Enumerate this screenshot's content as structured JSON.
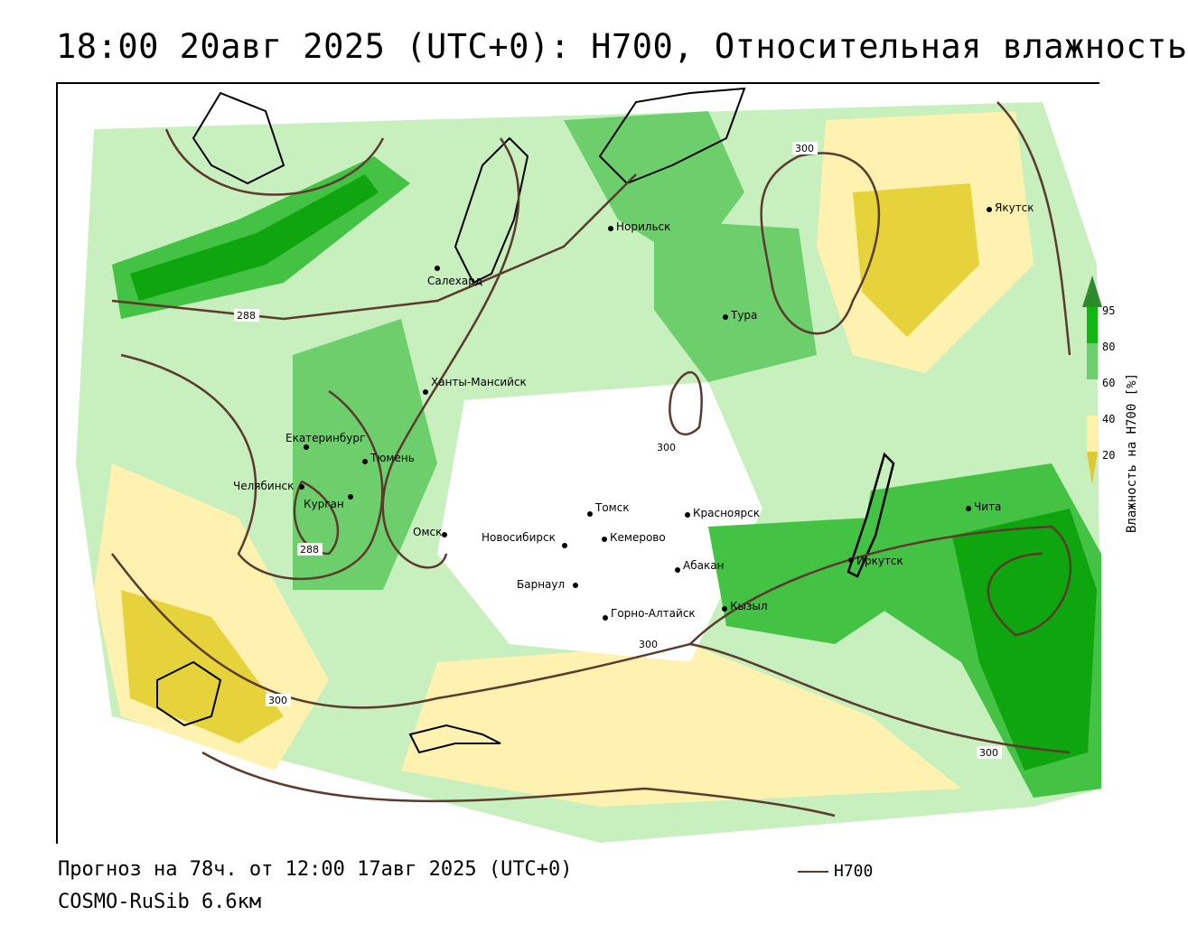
{
  "title": "18:00 20авг 2025 (UTC+0): H700, Относительная влажность",
  "footer": {
    "forecast": "Прогноз на 78ч. от 12:00 17авг 2025 (UTC+0)",
    "model": "COSMO-RuSib 6.6км",
    "legend_label": "H700"
  },
  "colorbar": {
    "title": "Влажность на H700 [%]",
    "ticks": [
      "95",
      "80",
      "60",
      "40",
      "20"
    ],
    "colors": [
      "#2d8a2d",
      "#11b611",
      "#6ccf6c",
      "#c8f0c0",
      "#ffffff",
      "#fff2a8",
      "#e0c832"
    ]
  },
  "cities": [
    {
      "name": "Норильск"
    },
    {
      "name": "Салехард"
    },
    {
      "name": "Тура"
    },
    {
      "name": "Якутск"
    },
    {
      "name": "Ханты-Мансийск"
    },
    {
      "name": "Екатеринбург"
    },
    {
      "name": "Тюмень"
    },
    {
      "name": "Челябинск"
    },
    {
      "name": "Курган"
    },
    {
      "name": "Омск"
    },
    {
      "name": "Томск"
    },
    {
      "name": "Новосибирск"
    },
    {
      "name": "Кемерово"
    },
    {
      "name": "Красноярск"
    },
    {
      "name": "Барнаул"
    },
    {
      "name": "Абакан"
    },
    {
      "name": "Горно-Алтайск"
    },
    {
      "name": "Кызыл"
    },
    {
      "name": "Иркутск"
    },
    {
      "name": "Чита"
    }
  ],
  "contour_labels": [
    "288",
    "300",
    "300",
    "288",
    "300",
    "300",
    "300"
  ],
  "colors": {
    "contour": "#5c3a2e",
    "dark_green": "#0fa50f",
    "mid_green": "#44c244",
    "light_green": "#b9eab0",
    "yellow_light": "#fff4b8",
    "yellow_dark": "#e6d23a"
  }
}
